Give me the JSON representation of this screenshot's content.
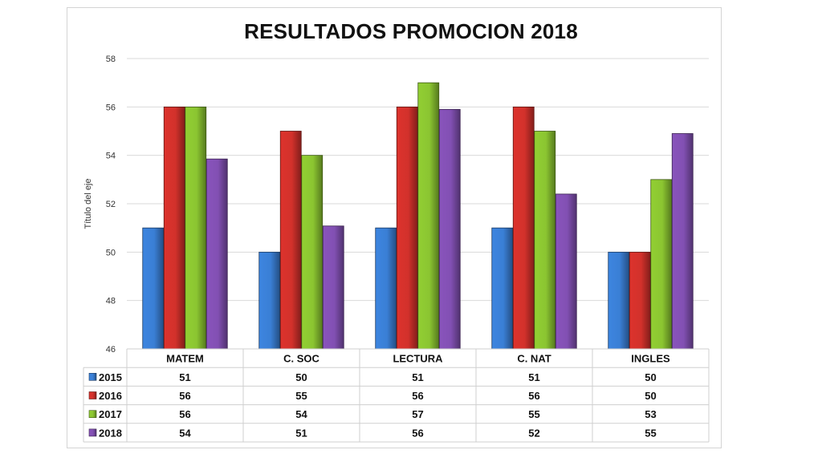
{
  "chart_data": {
    "type": "bar",
    "title": "RESULTADOS PROMOCION 2018",
    "ylabel": "Título del eje",
    "xlabel": "",
    "ylim": [
      46,
      58
    ],
    "yticks": [
      46,
      48,
      50,
      52,
      54,
      56,
      58
    ],
    "grid": true,
    "legend_placement": "data-table-left",
    "categories": [
      "MATEM",
      "C. SOC",
      "LECTURA",
      "C. NAT",
      "INGLES"
    ],
    "series": [
      {
        "name": "2015",
        "color": "#3a7fd5",
        "values": [
          51,
          50,
          51,
          51,
          50
        ],
        "table": [
          "51",
          "50",
          "51",
          "51",
          "50"
        ]
      },
      {
        "name": "2016",
        "color": "#d2312b",
        "values": [
          56,
          55,
          56,
          56,
          50
        ],
        "table": [
          "56",
          "55",
          "56",
          "56",
          "50"
        ]
      },
      {
        "name": "2017",
        "color": "#8bc531",
        "values": [
          56,
          54,
          57,
          55,
          53
        ],
        "table": [
          "56",
          "54",
          "57",
          "55",
          "53"
        ]
      },
      {
        "name": "2018",
        "color": "#8250b3",
        "values": [
          53.85,
          51.08,
          55.9,
          52.4,
          54.9
        ],
        "table": [
          "54",
          "51",
          "56",
          "52",
          "55"
        ]
      }
    ]
  }
}
